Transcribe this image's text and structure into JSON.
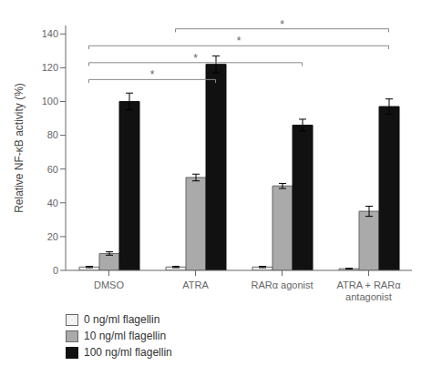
{
  "chart_data": {
    "type": "bar",
    "categories": [
      "DMSO",
      "ATRA",
      "RARα agonist",
      "ATRA + RARα\nantagonist"
    ],
    "series": [
      {
        "name": "0 ng/ml flagellin",
        "color": "#f2f2f2",
        "edgecolor": "#666666",
        "values": [
          2.0,
          2.0,
          2.0,
          1.0
        ],
        "errors": [
          0.4,
          0.4,
          0.4,
          0.2
        ]
      },
      {
        "name": "10 ng/ml flagellin",
        "color": "#aaaaaa",
        "edgecolor": "#666666",
        "values": [
          10.0,
          55.0,
          50.0,
          35.0
        ],
        "errors": [
          1.0,
          2.0,
          1.5,
          3.0
        ]
      },
      {
        "name": "100 ng/ml flagellin",
        "color": "#111111",
        "edgecolor": "#111111",
        "values": [
          100.0,
          122.0,
          86.0,
          97.0
        ],
        "errors": [
          5.0,
          5.0,
          3.5,
          4.5
        ]
      }
    ],
    "ylabel": "Relative NF-κB activity (%)",
    "ylim": [
      0,
      145
    ],
    "yticks": [
      0,
      20,
      40,
      60,
      80,
      100,
      120,
      140
    ],
    "grid": false,
    "legend": "bottom",
    "significance_lines": [
      {
        "from": "DMSO",
        "to": "ATRA",
        "y": 113,
        "label": "*"
      },
      {
        "from": "DMSO",
        "to": "RARα agonist",
        "y": 123,
        "label": "*"
      },
      {
        "from": "DMSO",
        "to": "ATRA + RARα\nantagonist",
        "y": 133,
        "label": "*"
      },
      {
        "from": "ATRA",
        "to": "ATRA + RARα\nantagonist",
        "y": 143,
        "label": "*"
      }
    ]
  }
}
